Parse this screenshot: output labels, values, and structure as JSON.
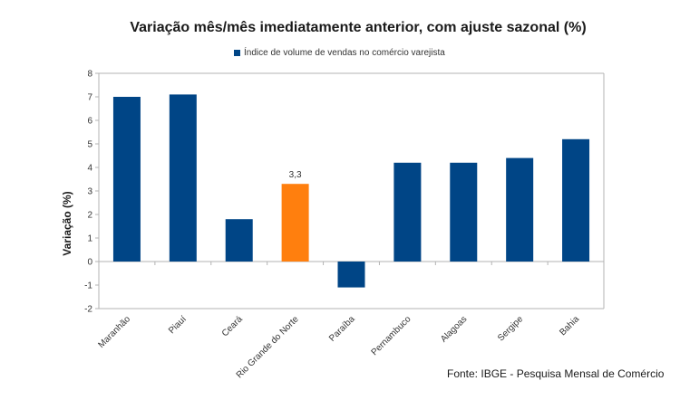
{
  "chart_data": {
    "type": "bar",
    "title": "Variação mês/mês imediatamente anterior, com ajuste sazonal (%)",
    "xlabel": "",
    "ylabel": "Variação (%)",
    "ylim": [
      -2,
      8
    ],
    "yticks": [
      -2,
      -1,
      0,
      1,
      2,
      3,
      4,
      5,
      6,
      7,
      8
    ],
    "grid": false,
    "legend": {
      "position": "top-center",
      "entries": [
        "Índice de volume de vendas no comércio varejista"
      ]
    },
    "categories": [
      "Maranhão",
      "Piauí",
      "Ceará",
      "Rio Grande do Norte",
      "Paraíba",
      "Pernambuco",
      "Alagoas",
      "Sergipe",
      "Bahia"
    ],
    "series": [
      {
        "name": "Índice de volume de vendas no comércio varejista",
        "values": [
          7.0,
          7.1,
          1.8,
          3.3,
          -1.1,
          4.2,
          4.2,
          4.4,
          5.2
        ],
        "color": "#004586",
        "highlight": {
          "index": 3,
          "color": "#ff7f0e",
          "label": "3,3"
        }
      }
    ],
    "source": "Fonte: IBGE - Pesquisa Mensal de Comércio"
  }
}
